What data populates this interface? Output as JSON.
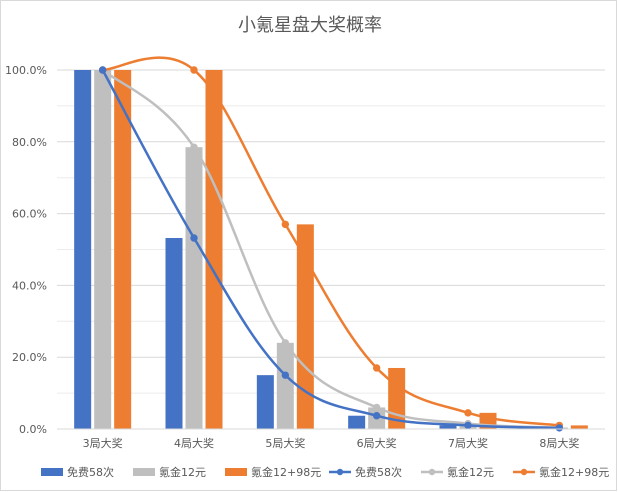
{
  "chart_data": {
    "type": "bar",
    "title": "小氪星盘大奖概率",
    "xlabel": "",
    "ylabel": "",
    "categories": [
      "3局大奖",
      "4局大奖",
      "5局大奖",
      "6局大奖",
      "7局大奖",
      "8局大奖"
    ],
    "ylim": [
      0,
      100
    ],
    "yticks": [
      "0.0%",
      "20.0%",
      "40.0%",
      "60.0%",
      "80.0%",
      "100.0%"
    ],
    "grid": true,
    "legend_position": "bottom",
    "series": [
      {
        "name": "免费58次",
        "kind": "bar",
        "color": "#4472c4",
        "values": [
          100,
          53.2,
          15.0,
          3.7,
          1.0,
          0.3
        ]
      },
      {
        "name": "氪金12元",
        "kind": "bar",
        "color": "#bfbfbf",
        "values": [
          100,
          78.5,
          24.0,
          6.0,
          1.5,
          0.4
        ]
      },
      {
        "name": "氪金12+98元",
        "kind": "bar",
        "color": "#ed7d31",
        "values": [
          100,
          100,
          57.0,
          17.0,
          4.5,
          1.0
        ]
      },
      {
        "name": "免费58次",
        "kind": "line",
        "color": "#4472c4",
        "values": [
          100,
          53.2,
          15.0,
          3.7,
          1.0,
          0.3
        ]
      },
      {
        "name": "氪金12元",
        "kind": "line",
        "color": "#bfbfbf",
        "values": [
          100,
          78.5,
          24.0,
          6.0,
          1.5,
          0.4
        ]
      },
      {
        "name": "氪金12+98元",
        "kind": "line",
        "color": "#ed7d31",
        "values": [
          100,
          100,
          57.0,
          17.0,
          4.5,
          1.0
        ]
      }
    ]
  }
}
